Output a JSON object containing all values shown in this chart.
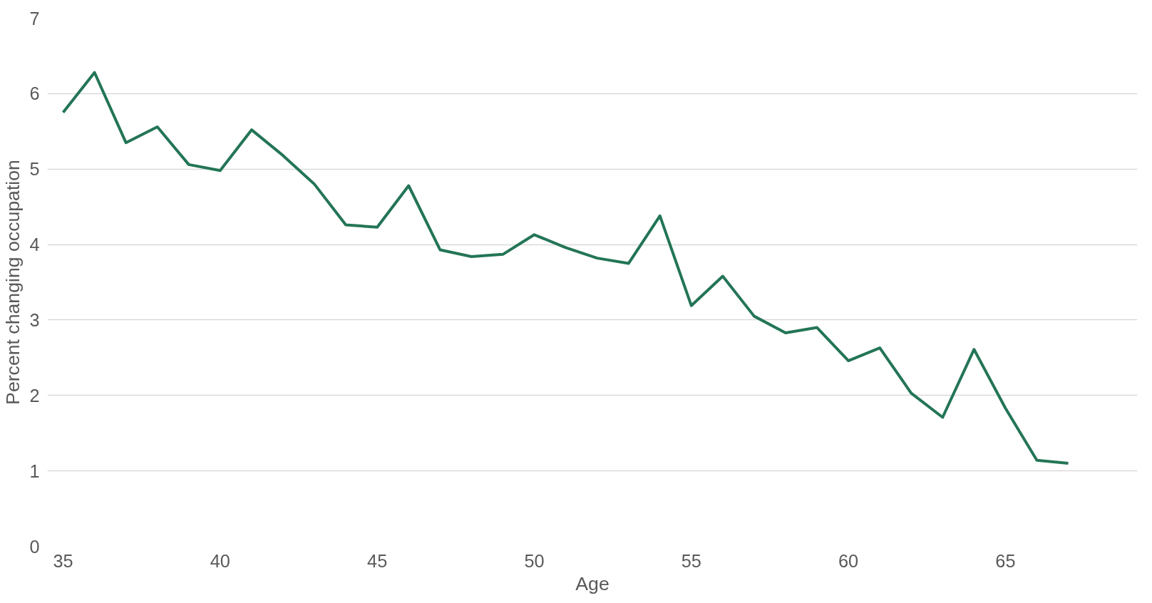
{
  "chart_data": {
    "type": "line",
    "xlabel": "Age",
    "ylabel": "Percent changing occupation",
    "x": [
      35,
      36,
      37,
      38,
      39,
      40,
      41,
      42,
      43,
      44,
      45,
      46,
      47,
      48,
      49,
      50,
      51,
      52,
      53,
      54,
      55,
      56,
      57,
      58,
      59,
      60,
      61,
      62,
      63,
      64,
      65,
      66,
      67
    ],
    "series": [
      {
        "color": "#237556",
        "values": [
          5.75,
          6.28,
          5.35,
          5.56,
          5.06,
          4.98,
          5.52,
          5.18,
          4.8,
          4.26,
          4.23,
          4.78,
          3.93,
          3.84,
          3.87,
          4.13,
          3.96,
          3.82,
          3.75,
          4.38,
          3.19,
          3.58,
          3.05,
          2.83,
          2.9,
          2.46,
          2.63,
          2.03,
          1.71,
          2.61,
          1.83,
          1.14,
          1.1
        ]
      }
    ],
    "xlim": [
      34.5,
      69.2
    ],
    "ylim": [
      0,
      7
    ],
    "xticks": [
      35,
      40,
      45,
      50,
      55,
      60,
      65
    ],
    "yticks": [
      0,
      1,
      2,
      3,
      4,
      5,
      6,
      7
    ],
    "grid": "y",
    "marker": "none",
    "line_style": "solid"
  }
}
